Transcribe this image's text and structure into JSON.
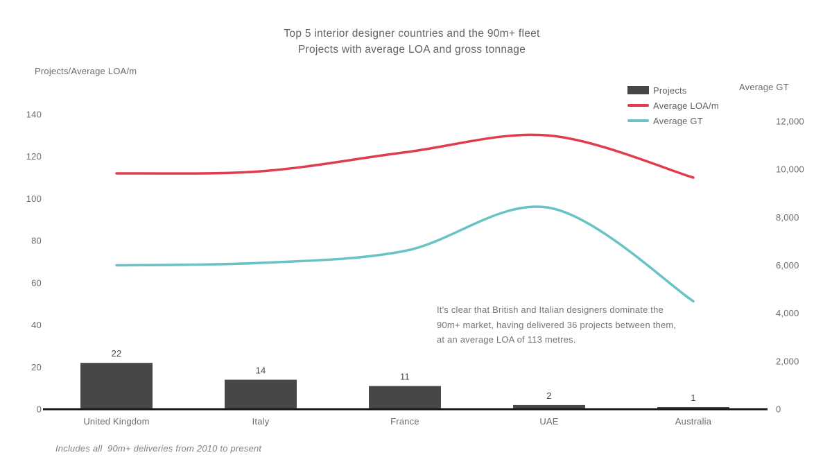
{
  "title": {
    "line1": "Top 5 interior designer countries and the 90m+ fleet",
    "line2": "Projects with average LOA and gross tonnage"
  },
  "annotation": "It's clear that British and Italian designers dominate the 90m+ market, having delivered 36 projects between them, at an average LOA of 113 metres.",
  "footnote": "Includes all  90m+ deliveries from 2010 to present",
  "colors": {
    "bar": "#474747",
    "loa_line": "#e03c4e",
    "gt_line": "#69c3c5",
    "axis_line": "#1a1a1a",
    "tick_text": "#6b6b6b",
    "value_label_text": "#4a4a4a"
  },
  "chart_data": {
    "type": "combo",
    "categories": [
      "United Kingdom",
      "Italy",
      "France",
      "UAE",
      "Australia"
    ],
    "series": [
      {
        "name": "Projects",
        "type": "bar",
        "axis": "left",
        "color": "#474747",
        "values": [
          22,
          14,
          11,
          2,
          1
        ],
        "value_labels": [
          "22",
          "14",
          "11",
          "2",
          "1"
        ]
      },
      {
        "name": "Average LOA/m",
        "type": "line",
        "axis": "left",
        "color": "#e03c4e",
        "values": [
          112,
          113,
          122,
          130,
          110
        ]
      },
      {
        "name": "Average GT",
        "type": "line",
        "axis": "right",
        "color": "#69c3c5",
        "values": [
          6000,
          6100,
          6600,
          8400,
          4500
        ]
      }
    ],
    "left_axis": {
      "label": "Projects/Average LOA/m",
      "min": 0,
      "max": 140,
      "step": 20
    },
    "right_axis": {
      "label": "Average GT",
      "min": 0,
      "max": 12000,
      "step": 2000,
      "format": "thousands-comma"
    },
    "legend_position": "top-right",
    "grid": false
  }
}
